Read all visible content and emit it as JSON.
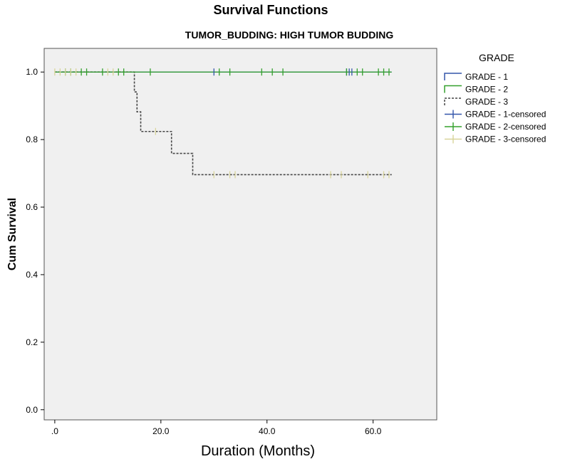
{
  "chart_data": {
    "type": "line",
    "title": "Survival Functions",
    "subtitle": "TUMOR_BUDDING: HIGH TUMOR BUDDING",
    "xlabel": "Duration (Months)",
    "ylabel": "Cum Survival",
    "xlim": [
      -2,
      72
    ],
    "ylim": [
      -0.03,
      1.07
    ],
    "x_ticks": [
      0,
      20,
      40,
      60
    ],
    "x_tick_labels": [
      ".0",
      "20.0",
      "40.0",
      "60.0"
    ],
    "y_ticks": [
      0,
      0.2,
      0.4,
      0.6,
      0.8,
      1.0
    ],
    "y_tick_labels": [
      "0.0",
      "0.2",
      "0.4",
      "0.6",
      "0.8",
      "1.0"
    ],
    "grid": false,
    "legend_position": "right",
    "legend_title": "GRADE",
    "series": [
      {
        "name": "GRADE - 1",
        "color": "#3355aa",
        "style": "solid",
        "x": [
          0,
          63.5
        ],
        "y": [
          1.0,
          1.0
        ],
        "censored_x": [
          30,
          55,
          55.5,
          56
        ]
      },
      {
        "name": "GRADE - 2",
        "color": "#33a02c",
        "style": "solid",
        "x": [
          0,
          63.5
        ],
        "y": [
          1.0,
          1.0
        ],
        "censored_x": [
          2,
          3,
          5,
          6,
          9,
          12,
          13,
          18,
          31,
          33,
          39,
          41,
          43,
          55,
          57,
          58,
          61,
          62,
          63
        ]
      },
      {
        "name": "GRADE - 3",
        "color": "#444444",
        "style": "dashed",
        "x": [
          0,
          15,
          15.5,
          16.2,
          22,
          26,
          63.5
        ],
        "y": [
          1.0,
          0.941,
          0.882,
          0.824,
          0.759,
          0.696,
          0.696
        ],
        "censored_x": [
          0,
          1,
          2,
          3,
          4,
          10,
          11,
          19,
          30,
          33,
          34,
          52,
          54,
          59,
          62,
          63
        ]
      }
    ],
    "legend_entries": [
      {
        "label": "GRADE - 1",
        "kind": "line",
        "color": "#3355aa",
        "style": "solid"
      },
      {
        "label": "GRADE - 2",
        "kind": "line",
        "color": "#33a02c",
        "style": "solid"
      },
      {
        "label": "GRADE - 3",
        "kind": "line",
        "color": "#444444",
        "style": "dashed"
      },
      {
        "label": "GRADE - 1-censored",
        "kind": "marker",
        "color": "#3355aa"
      },
      {
        "label": "GRADE - 2-censored",
        "kind": "marker",
        "color": "#33a02c"
      },
      {
        "label": "GRADE - 3-censored",
        "kind": "marker",
        "color": "#d8d49a"
      }
    ],
    "plot_background": "#f0f0f0"
  }
}
